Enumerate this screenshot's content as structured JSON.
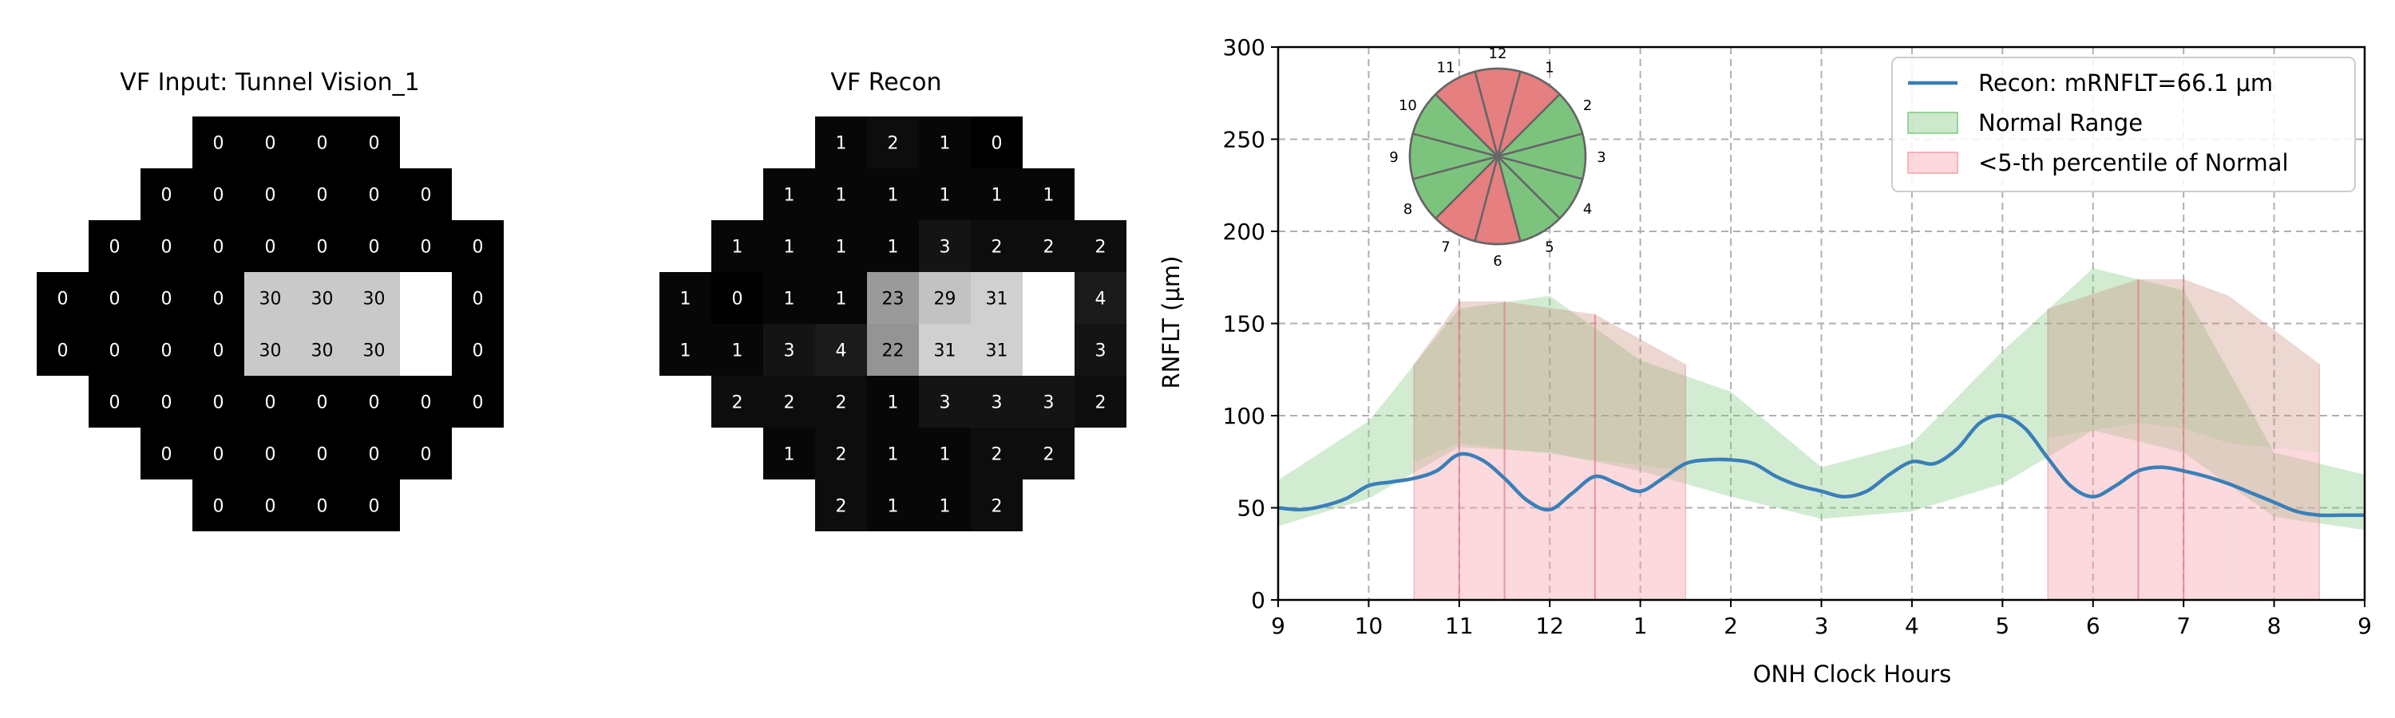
{
  "panels": {
    "vf_input": {
      "title": "VF Input: Tunnel Vision_1",
      "rows": [
        [
          "",
          "",
          "",
          "0",
          "0",
          "0",
          "0",
          "",
          "",
          ""
        ],
        [
          "",
          "",
          "0",
          "0",
          "0",
          "0",
          "0",
          "0",
          "",
          ""
        ],
        [
          "",
          "0",
          "0",
          "0",
          "0",
          "0",
          "0",
          "0",
          "0",
          ""
        ],
        [
          "0",
          "0",
          "0",
          "0",
          "30",
          "30",
          "30",
          "",
          "0",
          ""
        ],
        [
          "0",
          "0",
          "0",
          "0",
          "30",
          "30",
          "30",
          "",
          "0",
          ""
        ],
        [
          "",
          "0",
          "0",
          "0",
          "0",
          "0",
          "0",
          "0",
          "0",
          ""
        ],
        [
          "",
          "",
          "0",
          "0",
          "0",
          "0",
          "0",
          "0",
          "",
          ""
        ],
        [
          "",
          "",
          "",
          "0",
          "0",
          "0",
          "0",
          "",
          "",
          ""
        ]
      ],
      "blind_spots": [
        [
          3,
          7
        ],
        [
          4,
          7
        ]
      ]
    },
    "vf_recon": {
      "title": "VF Recon",
      "rows": [
        [
          "",
          "",
          "",
          "1",
          "2",
          "1",
          "0",
          "",
          "",
          ""
        ],
        [
          "",
          "",
          "1",
          "1",
          "1",
          "1",
          "1",
          "1",
          "",
          ""
        ],
        [
          "",
          "1",
          "1",
          "1",
          "1",
          "3",
          "2",
          "2",
          "2",
          ""
        ],
        [
          "1",
          "0",
          "1",
          "1",
          "23",
          "29",
          "31",
          "",
          "4",
          ""
        ],
        [
          "1",
          "1",
          "3",
          "4",
          "22",
          "31",
          "31",
          "",
          "3",
          ""
        ],
        [
          "",
          "2",
          "2",
          "2",
          "1",
          "3",
          "3",
          "3",
          "2",
          ""
        ],
        [
          "",
          "",
          "1",
          "2",
          "1",
          "1",
          "2",
          "2",
          "",
          ""
        ],
        [
          "",
          "",
          "",
          "2",
          "1",
          "1",
          "2",
          "",
          "",
          ""
        ]
      ],
      "blind_spots": [
        [
          3,
          7
        ],
        [
          4,
          7
        ]
      ]
    }
  },
  "chart_data": {
    "type": "line",
    "xlabel": "ONH Clock Hours",
    "ylabel": "RNFLT (μm)",
    "ylim": [
      0,
      300
    ],
    "yticks": [
      0,
      50,
      100,
      150,
      200,
      250,
      300
    ],
    "xticks": [
      "9",
      "10",
      "11",
      "12",
      "1",
      "2",
      "3",
      "4",
      "5",
      "6",
      "7",
      "8",
      "9"
    ],
    "grid": true,
    "legend_position": "top-right",
    "legend": [
      {
        "label": "Recon: mRNFLT=66.1 μm",
        "kind": "line",
        "color": "#3a7fb8"
      },
      {
        "label": "Normal Range",
        "kind": "patch",
        "color": "#7fc97f"
      },
      {
        "label": "<5-th percentile of Normal",
        "kind": "patch",
        "color": "#f4a0a8"
      }
    ],
    "normal_range": {
      "x": [
        0,
        1,
        2,
        3,
        4,
        5,
        6,
        7,
        8,
        9,
        10,
        11,
        12
      ],
      "upper": [
        65,
        97,
        158,
        165,
        130,
        113,
        72,
        85,
        135,
        180,
        168,
        80,
        68
      ],
      "lower": [
        40,
        55,
        83,
        80,
        70,
        56,
        44,
        48,
        63,
        92,
        80,
        45,
        38
      ]
    },
    "highlighted_normal_sectors": [
      [
        1.5,
        2.0
      ],
      [
        2.0,
        2.5
      ],
      [
        2.5,
        3.5
      ],
      [
        3.5,
        4.5
      ],
      [
        8.5,
        9.5
      ],
      [
        9.5,
        10.0
      ],
      [
        10.0,
        10.5
      ],
      [
        10.5,
        11.5
      ]
    ],
    "below_5th_sectors": [
      [
        1.5,
        2.0
      ],
      [
        2.0,
        2.5
      ],
      [
        2.5,
        3.5
      ],
      [
        3.5,
        4.5
      ],
      [
        8.5,
        9.5
      ],
      [
        9.5,
        10.0
      ],
      [
        10.0,
        10.5
      ],
      [
        10.5,
        11.5
      ]
    ],
    "sector_dividers": [
      2.0,
      2.5,
      3.5,
      9.5,
      10.0
    ],
    "shaded_upper": {
      "x": [
        1.5,
        2.0,
        2.5,
        3.5,
        4.5,
        8.5,
        9.5,
        10.0,
        10.5,
        11.5
      ],
      "y": [
        128,
        162,
        162,
        155,
        128,
        158,
        174,
        174,
        165,
        128
      ]
    },
    "shaded_lower": {
      "x": [
        1.5,
        2.0,
        2.5,
        3.5,
        4.5,
        8.5,
        9.5,
        10.0,
        10.5,
        11.5
      ],
      "y": [
        75,
        85,
        82,
        76,
        70,
        88,
        96,
        93,
        85,
        80
      ]
    },
    "recon_line": {
      "x": [
        0,
        0.25,
        0.5,
        0.75,
        1.0,
        1.25,
        1.5,
        1.75,
        2.0,
        2.25,
        2.5,
        2.75,
        3.0,
        3.25,
        3.5,
        3.75,
        4.0,
        4.25,
        4.5,
        4.75,
        5.0,
        5.25,
        5.5,
        5.75,
        6.0,
        6.25,
        6.5,
        6.75,
        7.0,
        7.25,
        7.5,
        7.75,
        8.0,
        8.25,
        8.5,
        8.75,
        9.0,
        9.25,
        9.5,
        9.75,
        10.0,
        10.25,
        10.5,
        10.75,
        11.0,
        11.25,
        11.5,
        11.75,
        12.0
      ],
      "y": [
        50,
        49,
        51,
        55,
        62,
        64,
        66,
        70,
        79,
        76,
        66,
        54,
        49,
        58,
        67,
        63,
        59,
        66,
        74,
        76,
        76,
        74,
        67,
        62,
        59,
        56,
        59,
        68,
        75,
        74,
        82,
        96,
        100,
        93,
        77,
        62,
        56,
        62,
        70,
        72,
        70,
        67,
        63,
        58,
        53,
        48,
        46,
        46,
        46
      ]
    }
  },
  "inset_dial": {
    "labels": [
      "12",
      "1",
      "2",
      "3",
      "4",
      "5",
      "6",
      "7",
      "8",
      "9",
      "10",
      "11"
    ],
    "sector_colors": [
      "#e57f80",
      "#e57f80",
      "#7cc47e",
      "#7cc47e",
      "#7cc47e",
      "#7cc47e",
      "#e57f80",
      "#e57f80",
      "#7cc47e",
      "#7cc47e",
      "#7cc47e",
      "#e57f80"
    ]
  }
}
